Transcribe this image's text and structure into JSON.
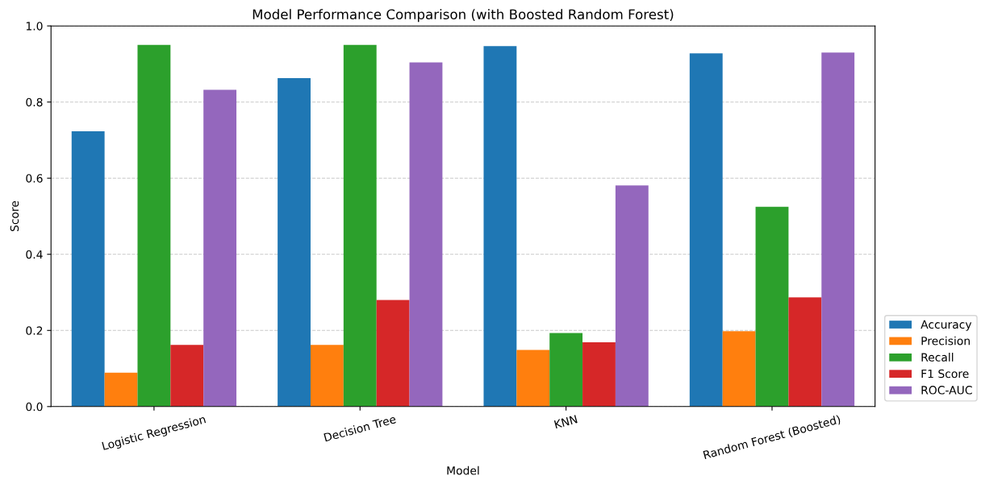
{
  "chart_data": {
    "type": "bar",
    "title": "Model Performance Comparison (with Boosted Random Forest)",
    "xlabel": "Model",
    "ylabel": "Score",
    "categories": [
      "Logistic Regression",
      "Decision Tree",
      "KNN",
      "Random Forest (Boosted)"
    ],
    "series": [
      {
        "name": "Accuracy",
        "color": "#1f77b4",
        "values": [
          0.723,
          0.863,
          0.947,
          0.928
        ]
      },
      {
        "name": "Precision",
        "color": "#ff7f0e",
        "values": [
          0.089,
          0.162,
          0.149,
          0.198
        ]
      },
      {
        "name": "Recall",
        "color": "#2ca02c",
        "values": [
          0.95,
          0.95,
          0.193,
          0.525
        ]
      },
      {
        "name": "F1 Score",
        "color": "#d62728",
        "values": [
          0.162,
          0.28,
          0.169,
          0.287
        ]
      },
      {
        "name": "ROC-AUC",
        "color": "#9467bd",
        "values": [
          0.832,
          0.904,
          0.581,
          0.93
        ]
      }
    ],
    "ylim": [
      0,
      1.0
    ],
    "yticks": [
      {
        "value": 0,
        "label": "0.0"
      },
      0.2,
      0.4,
      0.6,
      0.8,
      {
        "value": 1.0,
        "label": "1.0"
      }
    ],
    "grid": "y",
    "legend": "bottom right"
  }
}
